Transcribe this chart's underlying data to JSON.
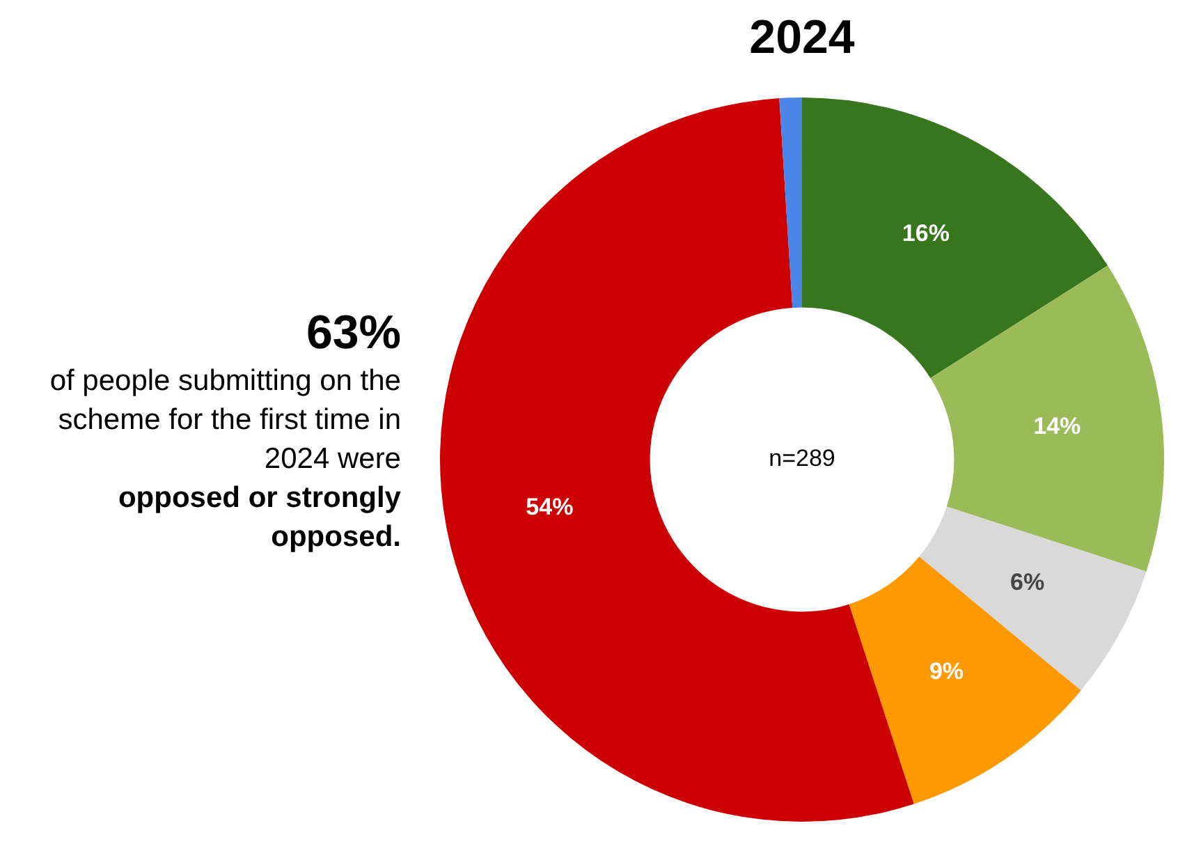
{
  "chart_data": {
    "type": "donut",
    "title": "2024",
    "categories": [
      null,
      null,
      null,
      null,
      null,
      null
    ],
    "values": [
      16,
      14,
      6,
      9,
      54,
      1
    ],
    "colors": [
      "#38761d",
      "#9bbb59",
      "#d9d9d9",
      "#ff9900",
      "#cc0000",
      "#4a86e8"
    ],
    "value_labels": [
      "16%",
      "14%",
      "6%",
      "9%",
      "54%",
      null
    ],
    "annotations": [
      "63%",
      "of people submitting on the scheme for the first time in 2024 were",
      "opposed or strongly opposed.",
      "n=289"
    ],
    "legend": false
  }
}
